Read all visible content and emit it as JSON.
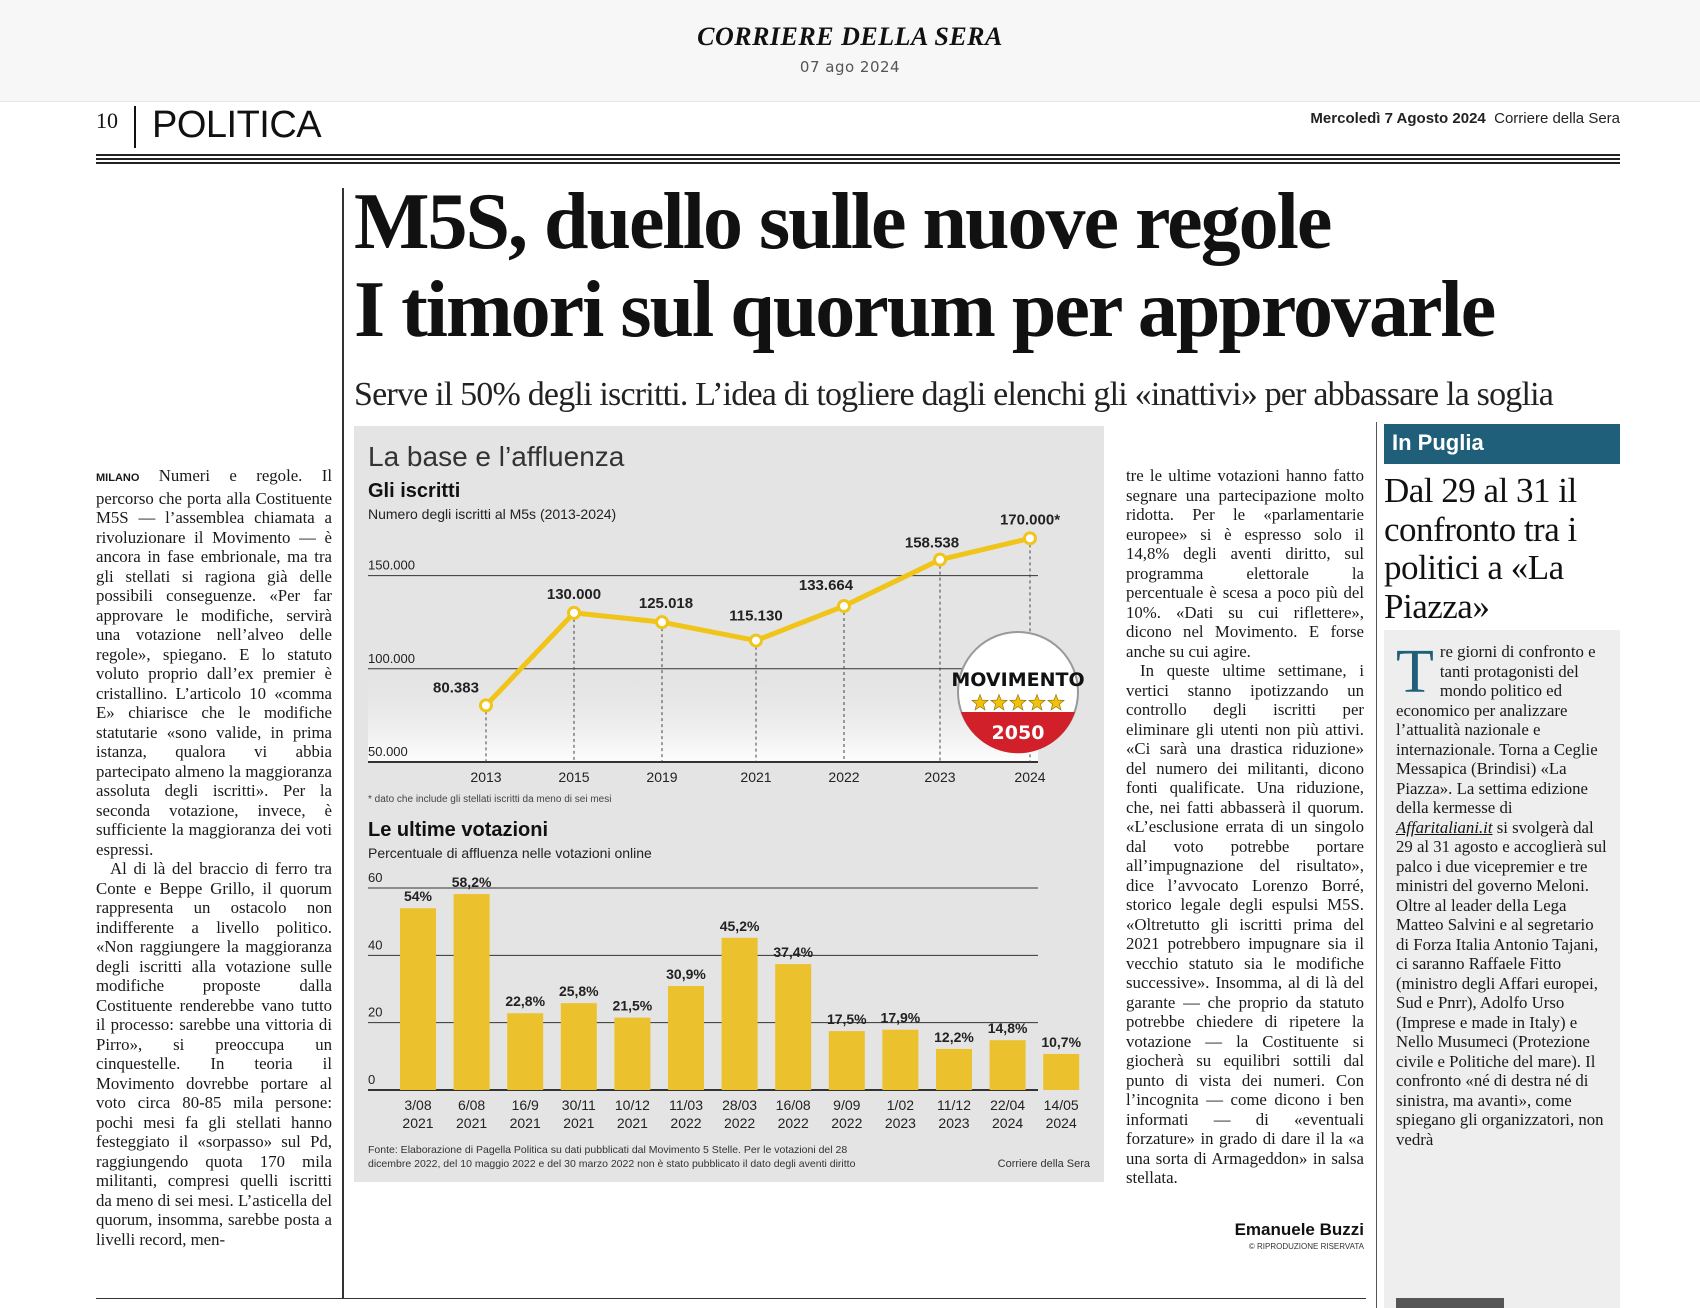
{
  "viewer": {
    "masthead": "CORRIERE DELLA SERA",
    "date": "07 ago 2024"
  },
  "header": {
    "page_number": "10",
    "section": "POLITICA",
    "date_bold": "Mercoledì 7 Agosto 2024",
    "paper": "Corriere della Sera"
  },
  "article": {
    "headline_line1": "M5S, duello sulle nuove regole",
    "headline_line2": "I timori sul quorum per approvarle",
    "subhead": "Serve il 50% degli iscritti. L’idea di togliere dagli elenchi gli «inattivi» per abbassare la soglia",
    "location": "MILANO",
    "col1_p1": "Numeri e regole. Il percorso che porta alla Costituente M5S — l’assemblea chiamata a rivoluzionare il Movimento — è ancora in fase embrionale, ma tra gli stellati si ragiona già delle possibili conseguenze. «Per far approvare le modifiche, servirà una votazione nell’alveo delle regole», spiegano. E lo statuto voluto proprio dall’ex premier è cristallino. L’articolo 10 «comma E» chiarisce che le modifiche statutarie «sono valide, in prima istanza, qualora vi abbia partecipato almeno la maggioranza assoluta degli iscritti». Per la seconda votazione, invece, è sufficiente la maggioranza dei voti espressi.",
    "col1_p2": "Al di là del braccio di ferro tra Conte e Beppe Grillo, il quorum rappresenta un ostacolo non indifferente a livello politico. «Non raggiungere la maggioranza degli iscritti alla votazione sulle modifiche proposte dalla Costituente renderebbe vano tutto il processo: sarebbe una vittoria di Pirro», si preoccupa un cinquestelle. In teoria il Movimento dovrebbe portare al voto circa 80-85 mila persone: pochi mesi fa gli stellati hanno festeggiato il «sorpasso» sul Pd, raggiungendo quota 170 mila militanti, compresi quelli iscritti da meno di sei mesi. L’asticella del quorum, insomma, sarebbe posta a livelli record, men-",
    "col3_p1": "tre le ultime votazioni hanno fatto segnare una partecipazione molto ridotta. Per le «parlamentarie europee» si è espresso solo il 14,8% degli aventi diritto, sul programma elettorale la percentuale è scesa a poco più del 10%. «Dati su cui riflettere», dicono nel Movimento. E forse anche su cui agire.",
    "col3_p2": "In queste ultime settimane, i vertici stanno ipotizzando un controllo degli iscritti per eliminare gli utenti non più attivi. «Ci sarà una drastica riduzione» del numero dei militanti, dicono fonti qualificate. Una riduzione, che, nei fatti abbasserà il quorum. «L’esclusione errata di un singolo dal voto potrebbe portare all’impugnazione del risultato», dice l’avvocato Lorenzo Borré, storico legale degli espulsi M5S. «Oltretutto gli iscritti prima del 2021 potrebbero impugnare sia il vecchio statuto sia le modifiche successive». Insomma, al di là del garante — che proprio da statuto potrebbe chiedere di ripetere la votazione — la Costituente si giocherà su equilibri sottili dal punto di vista dei numeri. Con l’incognita — come dicono i ben informati — di «eventuali forzature» in grado di dare il la «a una sorta di Armageddon» in salsa stellata.",
    "byline": "Emanuele Buzzi",
    "rights": "© RIPRODUZIONE RISERVATA"
  },
  "sidebar": {
    "label": "In Puglia",
    "title": "Dal 29 al 31 il confronto tra i politici a «La Piazza»",
    "dropcap": "T",
    "body_a": "re giorni di confronto e tanti protagonisti del mondo politico ed economico per analizzare l’attualità nazionale e internazionale. Torna a Ceglie Messapica (Brindisi) «La Piazza». La settima edizione della kermesse di ",
    "link": "Affaritaliani.it",
    "body_b": " si svolgerà dal 29 al 31 agosto e accoglierà sul palco i due vicepremier e tre ministri del governo Meloni. Oltre al leader della Lega Matteo Salvini e al segretario di Forza Italia Antonio Tajani, ci saranno Raffaele Fitto (ministro degli Affari europei, Sud e Pnrr), Adolfo Urso (Imprese e made in Italy) e Nello Musumeci (Protezione civile e Politiche del mare). Il confronto «né di destra né di sinistra, ma avanti», come spiegano gli organizzatori, non vedrà"
  },
  "graphic": {
    "title": "La base e l’affluenza",
    "logo_text": "MOVIMENTO",
    "logo_year": "2050",
    "source": "Fonte: Elaborazione di Pagella Politica su dati pubblicati dal Movimento 5 Stelle. Per le votazioni del 28 dicembre 2022, del 10 maggio 2022 e del 30 marzo 2022 non è stato pubblicato il dato degli aventi diritto",
    "credit": "Corriere della Sera"
  },
  "chart_data": [
    {
      "type": "line",
      "title": "Gli iscritti",
      "subtitle": "Numero degli iscritti al M5s (2013-2024)",
      "categories": [
        "2013",
        "2015",
        "2019",
        "2021",
        "2022",
        "2023",
        "2024"
      ],
      "values": [
        80383,
        130000,
        125018,
        115130,
        133664,
        158538,
        170000
      ],
      "labels": [
        "80.383",
        "130.000",
        "125.018",
        "115.130",
        "133.664",
        "158.538",
        "170.000*"
      ],
      "yticks": [
        "50.000",
        "100.000",
        "150.000"
      ],
      "ytick_values": [
        50000,
        100000,
        150000
      ],
      "ylim": [
        50000,
        170000
      ],
      "note": "* dato che include gli stellati iscritti da meno di sei mesi",
      "color": "#f0c419",
      "grid": true
    },
    {
      "type": "bar",
      "title": "Le ultime votazioni",
      "subtitle": "Percentuale di affluenza nelle votazioni online",
      "categories": [
        [
          "3/08",
          "2021"
        ],
        [
          "6/08",
          "2021"
        ],
        [
          "16/9",
          "2021"
        ],
        [
          "30/11",
          "2021"
        ],
        [
          "10/12",
          "2021"
        ],
        [
          "11/03",
          "2022"
        ],
        [
          "28/03",
          "2022"
        ],
        [
          "16/08",
          "2022"
        ],
        [
          "9/09",
          "2022"
        ],
        [
          "1/02",
          "2023"
        ],
        [
          "11/12",
          "2023"
        ],
        [
          "22/04",
          "2024"
        ],
        [
          "14/05",
          "2024"
        ]
      ],
      "values": [
        54,
        58.2,
        22.8,
        25.8,
        21.5,
        30.9,
        45.2,
        37.4,
        17.5,
        17.9,
        12.2,
        14.8,
        10.7
      ],
      "labels": [
        "54%",
        "58,2%",
        "22,8%",
        "25,8%",
        "21,5%",
        "30,9%",
        "45,2%",
        "37,4%",
        "17,5%",
        "17,9%",
        "12,2%",
        "14,8%",
        "10,7%"
      ],
      "yticks": [
        "0",
        "20",
        "40",
        "60"
      ],
      "ytick_values": [
        0,
        20,
        40,
        60
      ],
      "ylim": [
        0,
        60
      ],
      "color": "#ecc12e",
      "grid": true
    }
  ]
}
